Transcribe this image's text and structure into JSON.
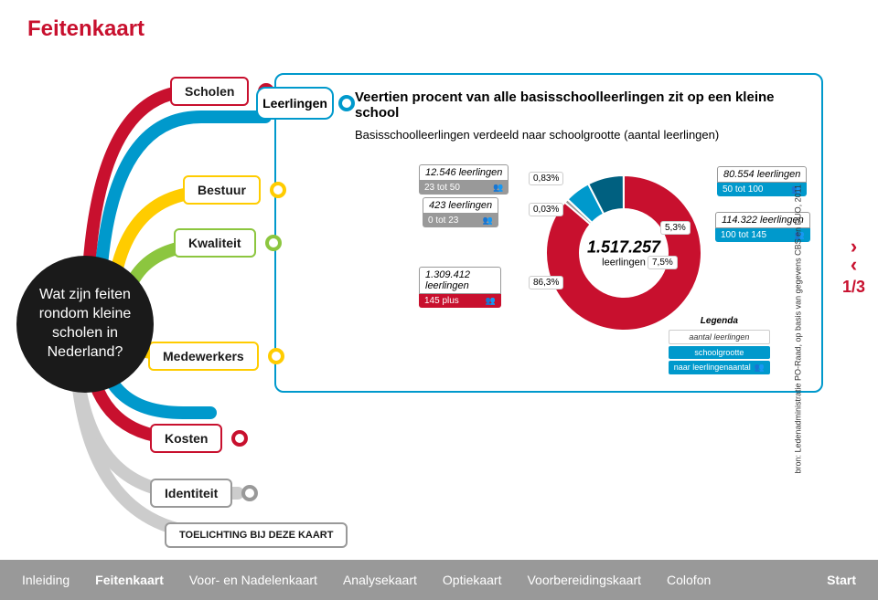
{
  "title": "Feitenkaart",
  "hub": "Wat zijn feiten rondom kleine scholen in Nederland?",
  "nav": {
    "scholen": "Scholen",
    "leerlingen": "Leerlingen",
    "bestuur": "Bestuur",
    "kwaliteit": "Kwaliteit",
    "medewerkers": "Medewerkers",
    "kosten": "Kosten",
    "identiteit": "Identiteit",
    "toelichting": "TOELICHTING BIJ DEZE KAART"
  },
  "card": {
    "title": "Veertien procent van alle basisschoolleerlingen zit op een kleine school",
    "sub": "Basisschoolleerlingen verdeeld naar schoolgrootte (aantal leerlingen)"
  },
  "donut": {
    "center_num": "1.517.257",
    "center_txt": "leerlingen",
    "slices": [
      {
        "label": "86,3%",
        "pct": 86.3,
        "color": "#c8102e"
      },
      {
        "label": "0,83%",
        "pct": 0.83,
        "color": "#999999"
      },
      {
        "label": "0,03%",
        "pct": 0.03,
        "color": "#666666"
      },
      {
        "label": "5,3%",
        "pct": 5.3,
        "color": "#0099cc"
      },
      {
        "label": "7,5%",
        "pct": 7.5,
        "color": "#006080"
      }
    ]
  },
  "data": {
    "d1": {
      "top": "12.546 leerlingen",
      "bot": "23 tot 50",
      "cls": "grey"
    },
    "d2": {
      "top": "423 leerlingen",
      "bot": "0 tot 23",
      "cls": "grey"
    },
    "d3": {
      "top": "1.309.412 leerlingen",
      "bot": "145 plus",
      "cls": "red"
    },
    "d4": {
      "top": "80.554 leerlingen",
      "bot": "50 tot 100",
      "cls": ""
    },
    "d5": {
      "top": "114.322 leerlingen",
      "bot": "100 tot 145",
      "cls": ""
    }
  },
  "pct": {
    "p0": "0,83%",
    "p1": "0,03%",
    "p2": "5,3%",
    "p3": "7,5%",
    "p4": "86,3%"
  },
  "legend": {
    "hdr": "Legenda",
    "r1": "aantal leerlingen",
    "r2": "schoolgrootte",
    "r3": "naar leerlingenaantal"
  },
  "source": "bron: Ledenadministratie PO-Raad, op basis van gegevens CBS en DUO, 2011",
  "pager": "1/3",
  "footer": [
    "Inleiding",
    "Feitenkaart",
    "Voor- en Nadelenkaart",
    "Analysekaart",
    "Optiekaart",
    "Voorbereidingskaart",
    "Colofon",
    "Start"
  ],
  "colors": {
    "red": "#c8102e",
    "cyan": "#0099cc",
    "yellow": "#ffcc00",
    "green": "#8cc63f",
    "grey": "#999999"
  }
}
